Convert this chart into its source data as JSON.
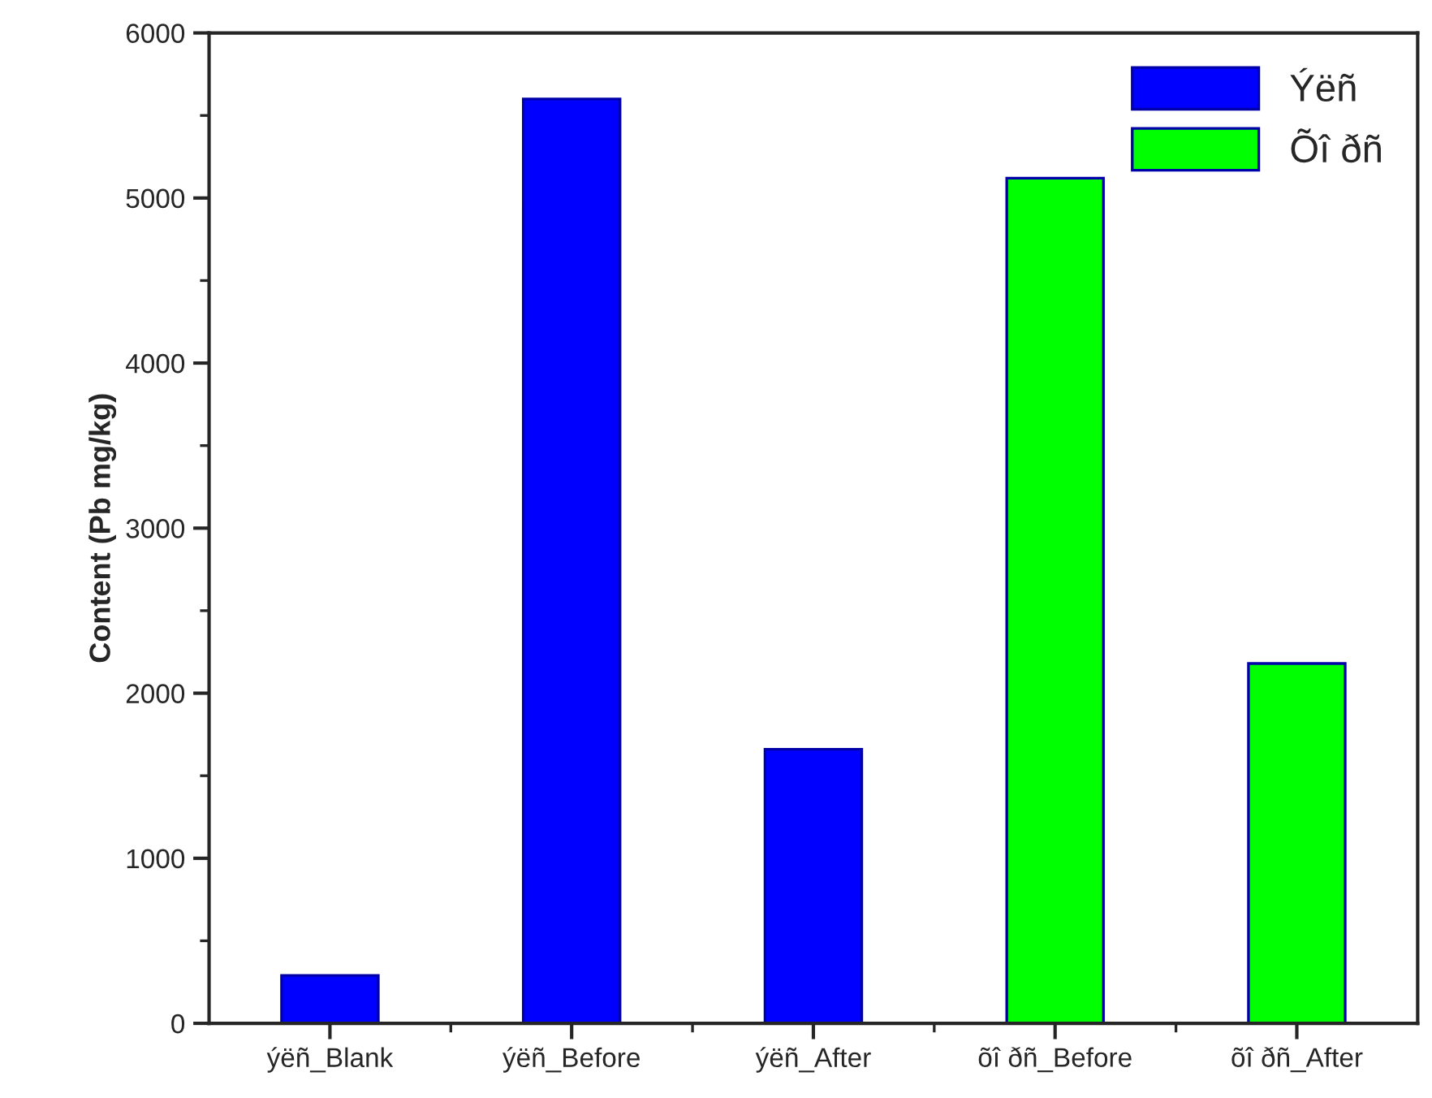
{
  "chart_data": {
    "type": "bar",
    "ylabel": "Content (Pb mg/kg)",
    "categories": [
      "ýëñ_Blank",
      "ýëñ_Before",
      "ýëñ_After",
      "õî ðñ_Before",
      "õî ðñ_After"
    ],
    "series": [
      {
        "name": "Ýëñ",
        "color": "#0000ff",
        "values": [
          290,
          5600,
          1660,
          null,
          null
        ]
      },
      {
        "name": "Õî ðñ",
        "color": "#00ff00",
        "values": [
          null,
          null,
          null,
          5120,
          2180
        ]
      }
    ],
    "ylim": [
      0,
      6000
    ],
    "yticks": [
      0,
      1000,
      2000,
      3000,
      4000,
      5000,
      6000
    ],
    "legend": "top right",
    "grid": false
  }
}
